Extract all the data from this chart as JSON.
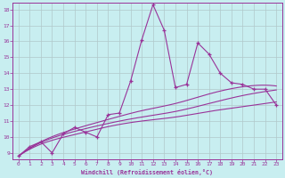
{
  "xlabel": "Windchill (Refroidissement éolien,°C)",
  "bg_color": "#c8eef0",
  "grid_color": "#b0c8ca",
  "line_color": "#993399",
  "xmin": 0,
  "xmax": 23,
  "ymin": 9,
  "ymax": 18,
  "main_x": [
    0,
    1,
    2,
    3,
    4,
    5,
    6,
    7,
    8,
    9,
    10,
    11,
    12,
    13,
    14,
    15,
    16,
    17,
    18,
    19,
    20,
    21,
    22,
    23
  ],
  "main_y": [
    8.8,
    9.4,
    9.7,
    9.0,
    10.2,
    10.6,
    10.3,
    10.0,
    11.4,
    11.5,
    13.5,
    16.1,
    18.3,
    16.7,
    13.1,
    13.3,
    15.9,
    15.2,
    14.0,
    13.4,
    13.3,
    13.0,
    13.0,
    12.0
  ],
  "curve1_x": [
    0,
    2,
    5,
    8,
    11,
    14,
    17,
    20,
    22,
    23
  ],
  "curve1_y": [
    8.8,
    9.55,
    10.15,
    10.65,
    11.0,
    11.25,
    11.6,
    11.9,
    12.1,
    12.2
  ],
  "curve2_x": [
    0,
    2,
    5,
    8,
    11,
    14,
    17,
    20,
    22,
    23
  ],
  "curve2_y": [
    8.8,
    9.65,
    10.35,
    10.85,
    11.25,
    11.6,
    12.1,
    12.6,
    12.85,
    12.95
  ],
  "curve3_x": [
    0,
    2,
    5,
    8,
    11,
    14,
    17,
    20,
    22,
    23
  ],
  "curve3_y": [
    8.8,
    9.7,
    10.5,
    11.1,
    11.65,
    12.1,
    12.7,
    13.15,
    13.25,
    13.2
  ]
}
